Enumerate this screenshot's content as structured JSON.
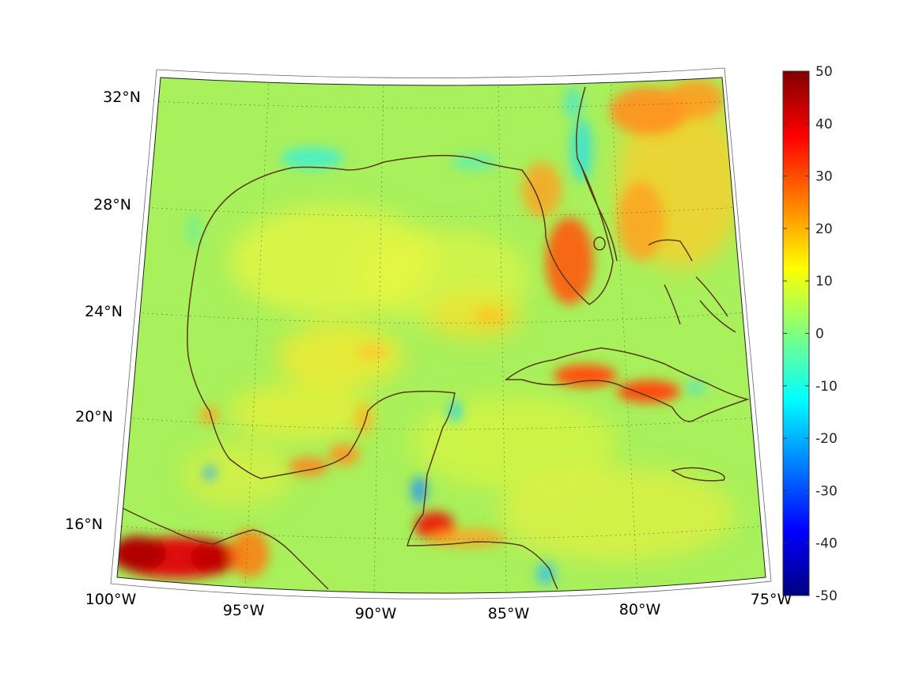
{
  "map": {
    "projection": "conic",
    "extent": {
      "lon": [
        -100,
        -75
      ],
      "lat": [
        14,
        33
      ]
    },
    "latitude_labels": [
      "32°N",
      "28°N",
      "24°N",
      "20°N",
      "16°N"
    ],
    "longitude_labels": [
      "100°W",
      "95°W",
      "90°W",
      "85°W",
      "80°W",
      "75°W"
    ],
    "coastline_color": "#5a3a10",
    "background_field_color": "#a6f05a",
    "grid": "dotted"
  },
  "colorbar": {
    "colormap": "jet",
    "range": [
      -50,
      50
    ],
    "tick_labels": [
      "50",
      "40",
      "30",
      "20",
      "10",
      "0",
      "-10",
      "-20",
      "-30",
      "-40",
      "-50"
    ]
  },
  "features": {
    "positive_hotspots": [
      "Gulf of Tehuantepec / southern Mexico coast",
      "Southwest Florida coast",
      "Atlantic east of Florida",
      "South coast of Cuba",
      "Gulf of Honduras",
      "Bay of Campeche coast",
      "Central Gulf of Mexico"
    ],
    "negative_spots": [
      "Northern Gulf coast",
      "Northeast Florida coast",
      "East coast of Yucatan",
      "Gulf of Honduras south",
      "Western Bay of Campeche"
    ]
  }
}
